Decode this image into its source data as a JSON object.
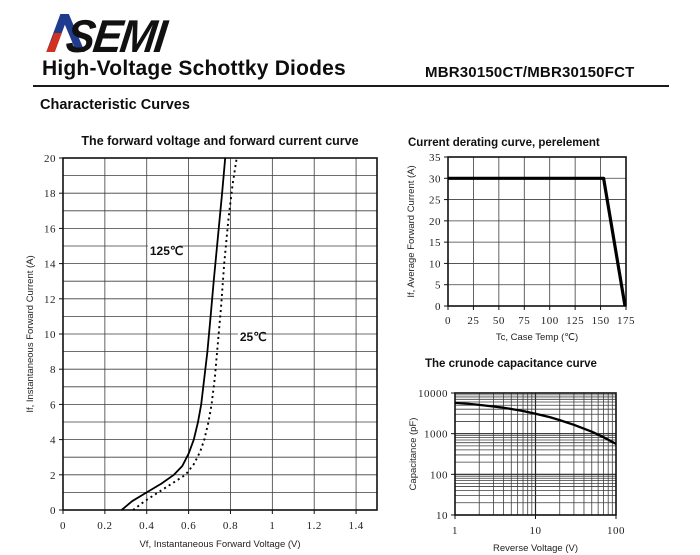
{
  "header": {
    "logo_text": "SEMI",
    "logo_alt": "ASEMI",
    "title": "High-Voltage Schottky Diodes",
    "part_number": "MBR30150CT/MBR30150FCT",
    "section_title": "Characteristic Curves"
  },
  "colors": {
    "logo_blue": "#1e3b8e",
    "logo_red": "#d2311f",
    "line_black": "#000000",
    "grid_gray": "#3d3d3d",
    "frame_black": "#111111"
  },
  "chart_data": [
    {
      "id": "fwd",
      "type": "line",
      "title": "The forward voltage and forward current curve",
      "xlabel": "Vf, Instantaneous Forward Voltage (V)",
      "ylabel": "If, Instantaneous Forward Current (A)",
      "xscale": "linear",
      "yscale": "linear",
      "xlim": [
        0,
        1.5
      ],
      "ylim": [
        0,
        20
      ],
      "grid": {
        "x_step": 0.2,
        "y_step": 1,
        "on": true
      },
      "xticks": [
        0,
        0.2,
        0.4,
        0.6,
        0.8,
        1,
        1.2,
        1.4
      ],
      "xtick_labels": [
        "0",
        "0.2",
        "0.4",
        "0.6",
        "0.8",
        "1",
        "1.2",
        "1.4"
      ],
      "yticks": [
        0,
        2,
        4,
        6,
        8,
        10,
        12,
        14,
        16,
        18,
        20
      ],
      "ytick_labels": [
        "0",
        "2",
        "4",
        "6",
        "8",
        "10",
        "12",
        "14",
        "16",
        "18",
        "20"
      ],
      "legend_position": "inline-annotations",
      "series": [
        {
          "name": "125℃",
          "style": "solid",
          "points": [
            [
              0.28,
              0
            ],
            [
              0.33,
              0.5
            ],
            [
              0.4,
              1
            ],
            [
              0.47,
              1.5
            ],
            [
              0.53,
              2
            ],
            [
              0.57,
              2.5
            ],
            [
              0.6,
              3.2
            ],
            [
              0.625,
              4
            ],
            [
              0.645,
              5
            ],
            [
              0.66,
              6
            ],
            [
              0.675,
              7.5
            ],
            [
              0.69,
              9
            ],
            [
              0.705,
              11
            ],
            [
              0.72,
              13
            ],
            [
              0.74,
              15.5
            ],
            [
              0.76,
              18
            ],
            [
              0.775,
              20
            ]
          ]
        },
        {
          "name": "25℃",
          "style": "dashed",
          "points": [
            [
              0.335,
              0
            ],
            [
              0.39,
              0.5
            ],
            [
              0.455,
              1
            ],
            [
              0.52,
              1.5
            ],
            [
              0.585,
              2
            ],
            [
              0.625,
              2.6
            ],
            [
              0.655,
              3.3
            ],
            [
              0.675,
              4
            ],
            [
              0.695,
              5
            ],
            [
              0.71,
              6
            ],
            [
              0.725,
              7.5
            ],
            [
              0.74,
              9.5
            ],
            [
              0.755,
              11.5
            ],
            [
              0.77,
              14
            ],
            [
              0.79,
              16.5
            ],
            [
              0.81,
              18.5
            ],
            [
              0.83,
              20
            ]
          ]
        }
      ],
      "annotations": [
        {
          "text": "125℃",
          "x": 0.415,
          "y": 14.5
        },
        {
          "text": "25℃",
          "x": 0.845,
          "y": 9.6
        }
      ]
    },
    {
      "id": "derating",
      "type": "line",
      "title": "Current derating curve, perelement",
      "xlabel": "Tc, Case Temp (℃)",
      "ylabel": "If, Average Forward Current (A)",
      "xscale": "linear",
      "yscale": "linear",
      "xlim": [
        0,
        175
      ],
      "ylim": [
        0,
        35
      ],
      "grid": {
        "x_step": 25,
        "y_step": 5,
        "on": true
      },
      "xticks": [
        0,
        25,
        50,
        75,
        100,
        125,
        150,
        175
      ],
      "xtick_labels": [
        "0",
        "25",
        "50",
        "75",
        "100",
        "125",
        "150",
        "175"
      ],
      "yticks": [
        0,
        5,
        10,
        15,
        20,
        25,
        30,
        35
      ],
      "ytick_labels": [
        "0",
        "5",
        "10",
        "15",
        "20",
        "25",
        "30",
        "35"
      ],
      "series": [
        {
          "name": "derating",
          "style": "thick",
          "points": [
            [
              0,
              30
            ],
            [
              153,
              30
            ],
            [
              174,
              0
            ]
          ]
        }
      ],
      "annotations": []
    },
    {
      "id": "cap",
      "type": "line",
      "title": "The crunode capacitance curve",
      "xlabel": "Reverse Voltage (V)",
      "ylabel": "Capacitance (pF)",
      "xscale": "log",
      "yscale": "log",
      "xlim": [
        1,
        100
      ],
      "ylim": [
        10,
        10000
      ],
      "grid": {
        "log_minors": true,
        "on": true
      },
      "xticks": [
        1,
        10,
        100
      ],
      "xtick_labels": [
        "1",
        "10",
        "100"
      ],
      "yticks": [
        10,
        100,
        1000,
        10000
      ],
      "ytick_labels": [
        "10",
        "100",
        "1000",
        "10000"
      ],
      "series": [
        {
          "name": "capacitance",
          "style": "medium",
          "points": [
            [
              1,
              5700
            ],
            [
              1.5,
              5400
            ],
            [
              2,
              5100
            ],
            [
              3,
              4650
            ],
            [
              4,
              4350
            ],
            [
              5,
              4050
            ],
            [
              7,
              3600
            ],
            [
              10,
              3100
            ],
            [
              15,
              2550
            ],
            [
              20,
              2150
            ],
            [
              30,
              1650
            ],
            [
              50,
              1120
            ],
            [
              70,
              820
            ],
            [
              100,
              560
            ]
          ]
        }
      ],
      "annotations": []
    }
  ]
}
